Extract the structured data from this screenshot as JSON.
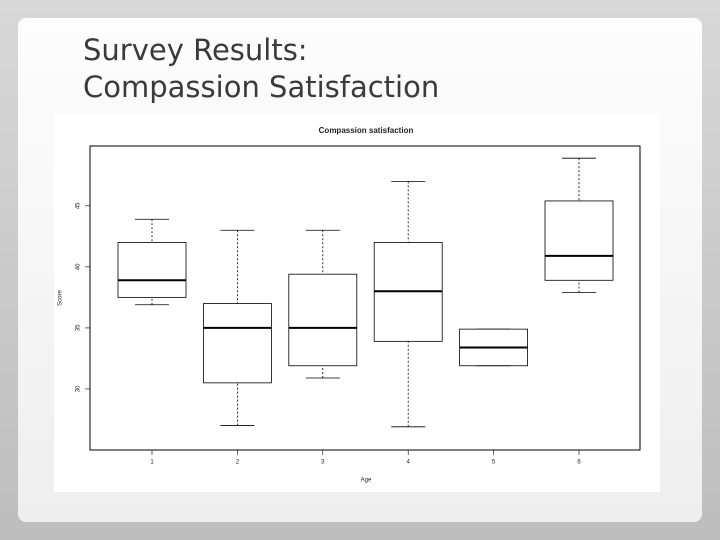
{
  "slide_title": [
    "Survey Results:",
    "Compassion Satisfaction"
  ],
  "chart_data": {
    "type": "box",
    "title": "Compassion satisfaction",
    "xlabel": "Age",
    "ylabel": "Score",
    "categories": [
      "1",
      "2",
      "3",
      "4",
      "5",
      "6"
    ],
    "boxes": [
      {
        "min": 36.9,
        "q1": 37.5,
        "median": 38.9,
        "q3": 42.0,
        "max": 43.9
      },
      {
        "min": 27.0,
        "q1": 30.5,
        "median": 35.0,
        "q3": 37.0,
        "max": 43.0
      },
      {
        "min": 30.9,
        "q1": 31.9,
        "median": 35.0,
        "q3": 39.4,
        "max": 43.0
      },
      {
        "min": 26.9,
        "q1": 33.9,
        "median": 38.0,
        "q3": 42.0,
        "max": 47.0
      },
      {
        "min": 31.9,
        "q1": 31.9,
        "median": 33.4,
        "q3": 34.9,
        "max": 34.9
      },
      {
        "min": 37.9,
        "q1": 38.9,
        "median": 40.9,
        "q3": 45.4,
        "max": 48.9
      }
    ],
    "color": "#000000",
    "ylim": [
      25,
      49.9
    ],
    "yticks": [
      30,
      35,
      40,
      45
    ]
  }
}
